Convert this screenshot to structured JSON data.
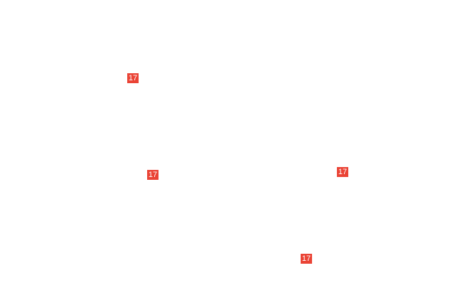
{
  "markers": [
    {
      "label": "17"
    },
    {
      "label": "17"
    },
    {
      "label": "17"
    },
    {
      "label": "17"
    }
  ],
  "colors": {
    "marker_bg": "#ea4335",
    "marker_text": "#ffffff",
    "background": "#ffffff"
  }
}
